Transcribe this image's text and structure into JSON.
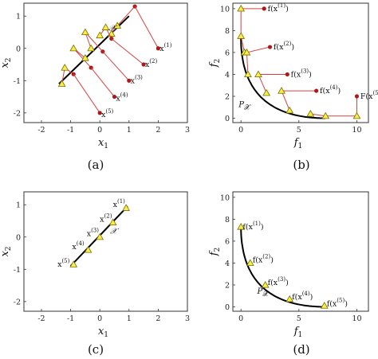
{
  "colors": {
    "arrow": "#d94040",
    "start_point": "#b01818",
    "marker_fill": "#f5ef4a",
    "marker_stroke": "#7a6a00",
    "frame": "#333333",
    "curve": "#000000"
  },
  "chart_data": [
    {
      "panel": "(a)",
      "type": "scatter",
      "xlabel": "x",
      "xlabel_sub": "1",
      "ylabel": "x",
      "ylabel_sub": "2",
      "xlim": [
        -2.6,
        3
      ],
      "ylim": [
        -2.3,
        1.4
      ],
      "xticks": [
        "-2",
        "-1",
        "0",
        "1",
        "2",
        "3"
      ],
      "yticks": [
        "-2",
        "-1",
        "0",
        "1"
      ],
      "set_label": "𝒳",
      "line_from": [
        -1.4,
        -1.1
      ],
      "line_to": [
        1.0,
        1.0
      ],
      "arrows": [
        {
          "from": [
            2.0,
            0.0
          ],
          "to": [
            1.2,
            1.3
          ]
        },
        {
          "from": [
            1.5,
            -0.5
          ],
          "to": [
            0.4,
            0.3
          ]
        },
        {
          "from": [
            1.0,
            -1.0
          ],
          "to": [
            0.1,
            -0.1
          ]
        },
        {
          "from": [
            0.5,
            -1.5
          ],
          "to": [
            -0.3,
            -0.6
          ]
        },
        {
          "from": [
            0.0,
            -2.0
          ],
          "to": [
            -0.9,
            -0.8
          ]
        }
      ],
      "walks": [
        [
          [
            1.2,
            1.3
          ],
          [
            0.6,
            0.7
          ],
          [
            0.4,
            0.45
          ]
        ],
        [
          [
            0.4,
            0.3
          ],
          [
            0.2,
            0.65
          ],
          [
            0.0,
            0.4
          ]
        ],
        [
          [
            0.1,
            -0.1
          ],
          [
            -0.5,
            0.5
          ],
          [
            -0.3,
            0.0
          ]
        ],
        [
          [
            -0.3,
            -0.6
          ],
          [
            -0.9,
            0.0
          ],
          [
            -0.5,
            -0.3
          ]
        ],
        [
          [
            -0.9,
            -0.8
          ],
          [
            -1.2,
            -0.6
          ],
          [
            -1.3,
            -1.1
          ]
        ]
      ],
      "labels": [
        {
          "text": "x",
          "sup": "(1)",
          "at": [
            2.05,
            0.0
          ]
        },
        {
          "text": "x",
          "sup": "(2)",
          "at": [
            1.55,
            -0.5
          ]
        },
        {
          "text": "x",
          "sup": "(3)",
          "at": [
            1.05,
            -1.0
          ]
        },
        {
          "text": "x",
          "sup": "(4)",
          "at": [
            0.55,
            -1.55
          ]
        },
        {
          "text": "x",
          "sup": "(5)",
          "at": [
            0.05,
            -2.05
          ]
        }
      ]
    },
    {
      "panel": "(b)",
      "type": "line",
      "xlabel": "f",
      "xlabel_sub": "1",
      "ylabel": "f",
      "ylabel_sub": "2",
      "xlim": [
        -0.7,
        11
      ],
      "ylim": [
        -0.4,
        10.5
      ],
      "xticks": [
        "0",
        "5",
        "10"
      ],
      "yticks": [
        "0",
        "2",
        "4",
        "6",
        "8",
        "10"
      ],
      "set_label": "P",
      "set_label_sub": "𝒳",
      "walks": [
        [
          [
            2.0,
            10.0
          ],
          [
            0.0,
            10.0
          ],
          [
            0.0,
            7.5
          ],
          [
            0.3,
            6.0
          ]
        ],
        [
          [
            2.5,
            6.5
          ],
          [
            0.5,
            6.0
          ],
          [
            0.6,
            4.0
          ]
        ],
        [
          [
            4.0,
            4.0
          ],
          [
            1.5,
            4.0
          ],
          [
            2.2,
            2.3
          ]
        ],
        [
          [
            6.5,
            2.5
          ],
          [
            3.5,
            2.5
          ],
          [
            4.2,
            0.7
          ]
        ],
        [
          [
            10.0,
            2.0
          ],
          [
            10.0,
            0.2
          ],
          [
            7.3,
            0.2
          ],
          [
            6.0,
            0.4
          ]
        ]
      ],
      "labels": [
        {
          "text": "f(x",
          "sup": "(1)",
          "at": [
            2.3,
            10.0
          ]
        },
        {
          "text": "f(x",
          "sup": "(2)",
          "at": [
            2.8,
            6.5
          ]
        },
        {
          "text": "f(x",
          "sup": "(3)",
          "at": [
            4.3,
            4.0
          ]
        },
        {
          "text": "f(x",
          "sup": "(4)",
          "at": [
            6.8,
            2.5
          ]
        },
        {
          "text": "F(x",
          "sup": "(5)",
          "at": [
            10.3,
            2.0
          ]
        }
      ]
    },
    {
      "panel": "(c)",
      "type": "scatter",
      "xlabel": "x",
      "xlabel_sub": "1",
      "ylabel": "x",
      "ylabel_sub": "2",
      "xlim": [
        -2.6,
        3
      ],
      "ylim": [
        -2.3,
        1.4
      ],
      "xticks": [
        "-2",
        "-1",
        "0",
        "1",
        "2",
        "3"
      ],
      "yticks": [
        "-2",
        "-1",
        "0",
        "1"
      ],
      "set_label": "𝒳",
      "line_from": [
        -1.0,
        -0.9
      ],
      "line_to": [
        0.95,
        0.95
      ],
      "points": [
        [
          0.9,
          0.9
        ],
        [
          0.45,
          0.45
        ],
        [
          0.0,
          0.0
        ],
        [
          -0.4,
          -0.4
        ],
        [
          -0.9,
          -0.85
        ]
      ],
      "labels": [
        {
          "text": "x",
          "sup": "(1)",
          "at": [
            0.45,
            1.0
          ]
        },
        {
          "text": "x",
          "sup": "(2)",
          "at": [
            0.0,
            0.55
          ]
        },
        {
          "text": "x",
          "sup": "(3)",
          "at": [
            -0.45,
            0.1
          ]
        },
        {
          "text": "x",
          "sup": "(4)",
          "at": [
            -0.95,
            -0.3
          ]
        },
        {
          "text": "x",
          "sup": "(5)",
          "at": [
            -1.45,
            -0.85
          ]
        }
      ]
    },
    {
      "panel": "(d)",
      "type": "line",
      "xlabel": "f",
      "xlabel_sub": "1",
      "ylabel": "f",
      "ylabel_sub": "2",
      "xlim": [
        -0.7,
        11
      ],
      "ylim": [
        -0.4,
        10.5
      ],
      "xticks": [
        "0",
        "5",
        "10"
      ],
      "yticks": [
        "0",
        "2",
        "4",
        "6",
        "8",
        "10"
      ],
      "set_label": "P",
      "set_label_sub": "𝒳",
      "points": [
        [
          0.0,
          7.3
        ],
        [
          0.8,
          4.0
        ],
        [
          2.1,
          2.0
        ],
        [
          4.2,
          0.7
        ],
        [
          7.2,
          0.1
        ]
      ],
      "labels": [
        {
          "text": "f(x",
          "sup": "(1)",
          "at": [
            0.15,
            7.3
          ]
        },
        {
          "text": "f(x",
          "sup": "(2)",
          "at": [
            1.0,
            4.3
          ]
        },
        {
          "text": "f(x",
          "sup": "(3)",
          "at": [
            2.3,
            2.2
          ]
        },
        {
          "text": "f(x",
          "sup": "(4)",
          "at": [
            4.4,
            0.9
          ]
        },
        {
          "text": "f(x",
          "sup": "(5)",
          "at": [
            7.4,
            0.3
          ]
        }
      ]
    }
  ],
  "captions": [
    "(a)",
    "(b)",
    "(c)",
    "(d)"
  ]
}
